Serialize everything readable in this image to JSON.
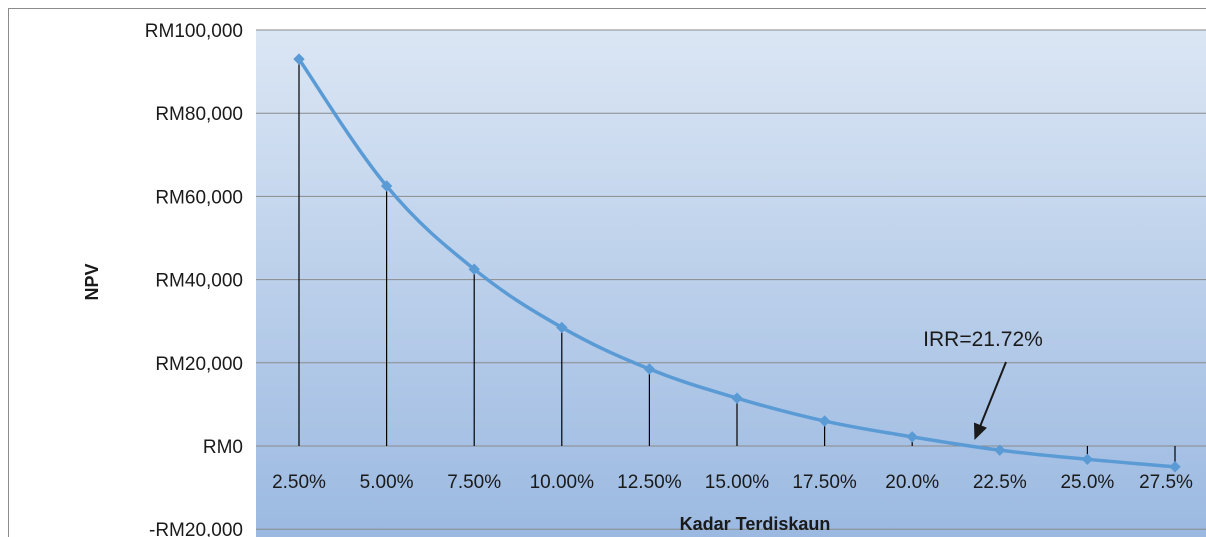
{
  "chart_data": {
    "type": "line",
    "title": "",
    "xlabel": "Kadar Terdiskaun",
    "ylabel": "NPV",
    "categories": [
      "2.50%",
      "5.00%",
      "7.50%",
      "10.00%",
      "12.50%",
      "15.00%",
      "17.50%",
      "20.0%",
      "22.5%",
      "25.0%",
      "27.5%"
    ],
    "series": [
      {
        "values": [
          93000,
          62500,
          42500,
          28500,
          18500,
          11500,
          6000,
          2200,
          -1000,
          -3200,
          -5000
        ]
      }
    ],
    "y_ticks": [
      "RM100,000",
      "RM80,000",
      "RM60,000",
      "RM40,000",
      "RM20,000",
      "RM0",
      "-RM20,000"
    ],
    "ylim": [
      -20000,
      100000
    ],
    "grid": true,
    "legend": "none",
    "drop_lines": true,
    "annotation": {
      "text": "IRR=21.72%",
      "x_value": 21.72,
      "y_value": 0
    },
    "colors": {
      "line": "#5b9bd5",
      "plot_gradient_top": "#dbe6f4",
      "plot_gradient_bottom": "#9bb9e1",
      "gridline": "#8a8a8a",
      "drop_line": "#000000"
    }
  }
}
